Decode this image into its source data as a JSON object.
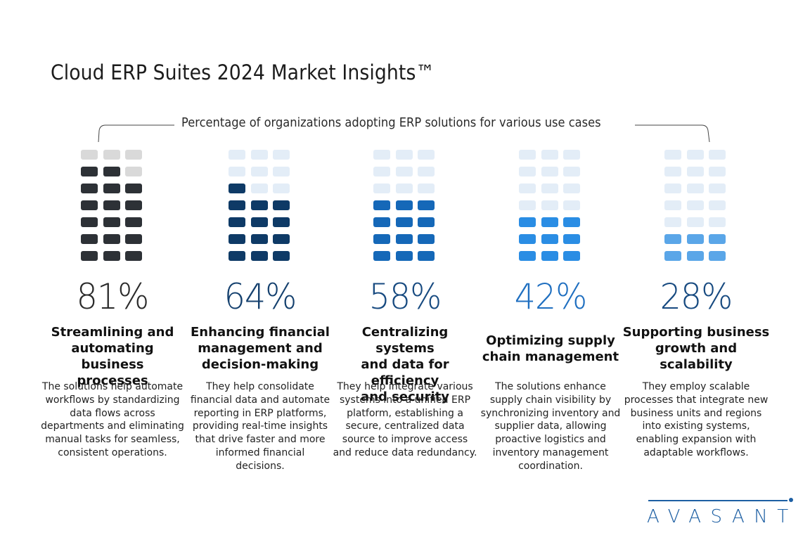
{
  "title": "Cloud ERP Suites 2024 Market Insights™",
  "logo": {
    "text": "AVASANT",
    "color": "#1d5fa3"
  },
  "chart_data": {
    "type": "waffle",
    "title": "Cloud ERP Suites 2024 Market Insights™",
    "subtitle": "Percentage of organizations adopting ERP solutions for various use cases",
    "grid": {
      "rows": 7,
      "cols": 3
    },
    "categories": [
      "Streamlining and automating business processes",
      "Enhancing financial management and decision-making",
      "Centralizing systems and data for efficiency and security",
      "Optimizing supply chain management",
      "Supporting business growth and scalability"
    ],
    "values": [
      81,
      64,
      58,
      42,
      28
    ],
    "unit": "%",
    "items": [
      {
        "value": 81,
        "label": "81%",
        "filled_cells": 17,
        "fill_color": "#2d3136",
        "empty_color": "#d9d9d9",
        "pct_color": "#2b2b2b",
        "heading": [
          "Streamlining and",
          "automating business",
          "processes"
        ],
        "description": [
          "The solutions help automate",
          "workflows by standardizing",
          "data flows across",
          "departments and eliminating",
          "manual tasks for seamless,",
          "consistent operations."
        ]
      },
      {
        "value": 64,
        "label": "64%",
        "filled_cells": 13,
        "fill_color": "#0e3a66",
        "empty_color": "#e3edf7",
        "pct_color": "#14406e",
        "heading": [
          "Enhancing financial",
          "management and",
          "decision-making"
        ],
        "description": [
          "They help consolidate",
          "financial data and automate",
          "reporting in ERP platforms,",
          "providing real-time insights",
          "that drive faster and more",
          "informed financial",
          "decisions."
        ]
      },
      {
        "value": 58,
        "label": "58%",
        "filled_cells": 12,
        "fill_color": "#1568b8",
        "empty_color": "#e3edf7",
        "pct_color": "#174a80",
        "heading": [
          "Centralizing systems",
          "and data for efficiency",
          "and security"
        ],
        "description": [
          "They help integrate various",
          "systems into a unified ERP",
          "platform, establishing a",
          "secure, centralized data",
          "source to improve access",
          "and reduce data redundancy."
        ]
      },
      {
        "value": 42,
        "label": "42%",
        "filled_cells": 9,
        "fill_color": "#2a8de4",
        "empty_color": "#e3edf7",
        "pct_color": "#1f6fc0",
        "heading": [
          "Optimizing supply",
          "chain management"
        ],
        "description": [
          "The solutions enhance",
          "supply chain visibility by",
          "synchronizing inventory and",
          "supplier data, allowing",
          "proactive logistics and",
          "inventory management",
          "coordination."
        ]
      },
      {
        "value": 28,
        "label": "28%",
        "filled_cells": 6,
        "fill_color": "#5aa6e8",
        "empty_color": "#e3edf7",
        "pct_color": "#174a80",
        "heading": [
          "Supporting business",
          "growth and",
          "scalability"
        ],
        "description": [
          "They employ scalable",
          "processes that integrate new",
          "business units and regions",
          "into existing systems,",
          "enabling expansion with",
          "adaptable workflows."
        ]
      }
    ]
  }
}
